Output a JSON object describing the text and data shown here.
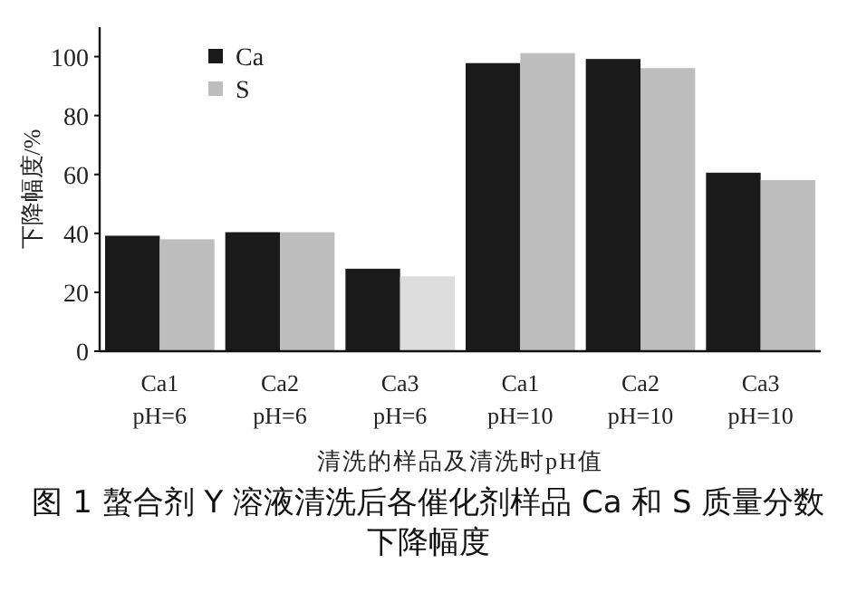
{
  "chart_data": {
    "type": "bar",
    "title": "图 1 螯合剂 Y 溶液清洗后各催化剂样品 Ca 和 S 质量分数下降幅度",
    "xlabel": "清洗的样品及清洗时pH值",
    "ylabel": "下降幅度/%",
    "categories": [
      "Ca1\npH=6",
      "Ca2\npH=6",
      "Ca3\npH=6",
      "Ca1\npH=10",
      "Ca2\npH=10",
      "Ca3\npH=10"
    ],
    "series": [
      {
        "name": "Ca",
        "color": "#1a1a1a",
        "values": [
          39.2,
          40.4,
          28.0,
          97.8,
          99.2,
          60.6
        ]
      },
      {
        "name": "S",
        "color": "#bdbdbd",
        "colors": [
          "#bdbdbd",
          "#bdbdbd",
          "#dcdcdc",
          "#bdbdbd",
          "#bdbdbd",
          "#bdbdbd"
        ],
        "values": [
          38.0,
          40.4,
          25.4,
          101.2,
          96.1,
          58.1
        ]
      }
    ],
    "ylim": [
      0,
      110
    ],
    "yticks": [
      0,
      20,
      40,
      60,
      80,
      100
    ],
    "grid": false,
    "legend": "top left"
  }
}
